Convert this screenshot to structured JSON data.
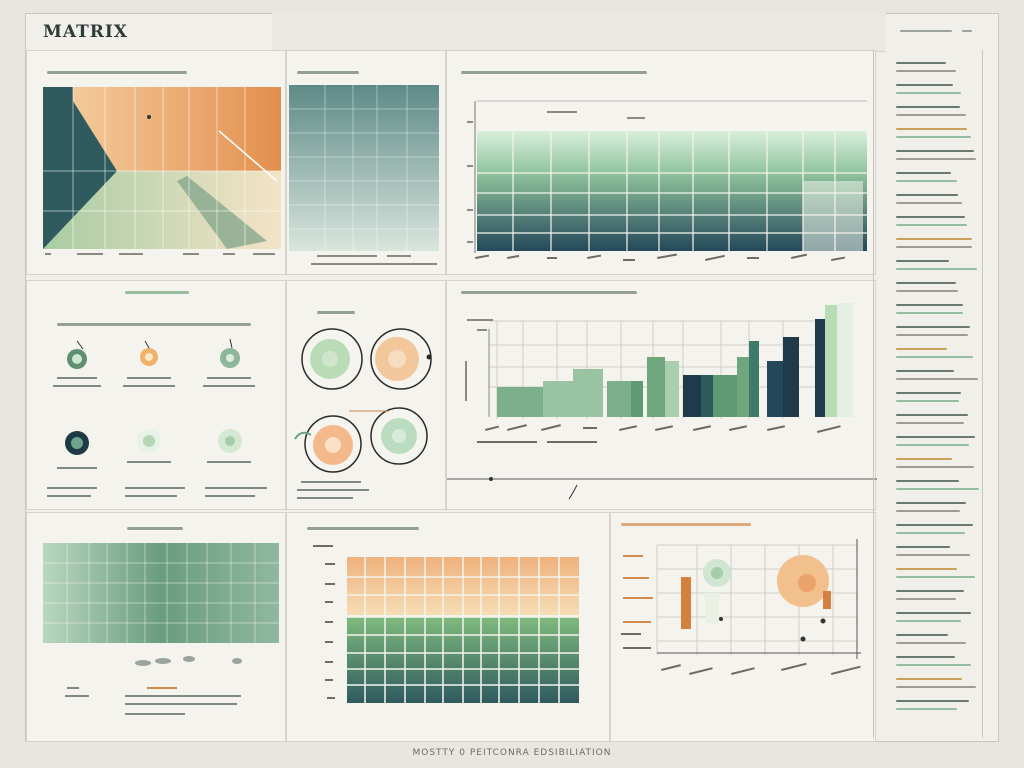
{
  "app": {
    "logo": "MATRIX"
  },
  "footer": {
    "caption": "MOSTTY 0 PEITCONRA EDSIBILIATION"
  },
  "colors": {
    "orange": "#e38f4e",
    "peach": "#f2c08c",
    "sage": "#9ac3a2",
    "teal": "#2f5a5e",
    "navy": "#1f3a4a",
    "mint": "#cfe6d2"
  },
  "icons": [
    "target-icon",
    "target-icon",
    "target-icon",
    "target-icon",
    "target-icon",
    "target-icon"
  ],
  "sidebar": {
    "item_count": 30
  }
}
